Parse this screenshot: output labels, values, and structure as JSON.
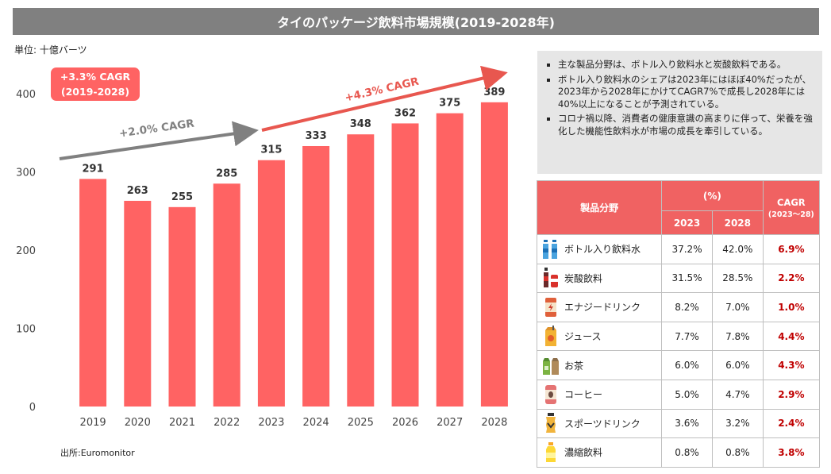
{
  "title": "タイのパッケージ飲料市場規模(2019-2028年)",
  "unit_label": "単位:  十億バーツ",
  "source": "出所:Euromonitor",
  "colors": {
    "bar": "#ff6363",
    "title_bg": "#808080",
    "cagr_gray": "#808080",
    "cagr_red": "#e8574f",
    "table_header": "#f06262",
    "cagr_text": "#c00000"
  },
  "chart_data": {
    "type": "bar",
    "categories": [
      "2019",
      "2020",
      "2021",
      "2022",
      "2023",
      "2024",
      "2025",
      "2026",
      "2027",
      "2028"
    ],
    "values": [
      291,
      263,
      255,
      285,
      315,
      333,
      348,
      362,
      375,
      389
    ],
    "ylim": [
      0,
      400
    ],
    "yticks": [
      0,
      100,
      200,
      300,
      400
    ],
    "grid": false,
    "annotations": {
      "overall_badge_line1": "+3.3% CAGR",
      "overall_badge_line2": "(2019-2028)",
      "cagr_first": "+2.0% CAGR",
      "cagr_second": "+4.3% CAGR"
    }
  },
  "notes": [
    "主な製品分野は、ボトル入り飲料水と炭酸飲料である。",
    "ボトル入り飲料水のシェアは2023年にはほぼ40%だったが、2023年から2028年にかけてCAGR7%で成長し2028年には40%以上になることが予測されている。",
    "コロナ禍以降、消費者の健康意識の高まりに伴って、栄養を強化した機能性飲料水が市場の成長を牽引している。"
  ],
  "table": {
    "header_segment": "製品分野",
    "header_share": "(%)",
    "header_2023": "2023",
    "header_2028": "2028",
    "header_cagr": "CAGR",
    "header_cagr_sub": "(2023～28)",
    "rows": [
      {
        "icon": "bottled-water-icon",
        "name": "ボトル入り飲料水",
        "y2023": "37.2%",
        "y2028": "42.0%",
        "cagr": "6.9%"
      },
      {
        "icon": "soda-icon",
        "name": "炭酸飲料",
        "y2023": "31.5%",
        "y2028": "28.5%",
        "cagr": "2.2%"
      },
      {
        "icon": "energy-drink-icon",
        "name": "エナジードリンク",
        "y2023": "8.2%",
        "y2028": "7.0%",
        "cagr": "1.0%"
      },
      {
        "icon": "juice-icon",
        "name": "ジュース",
        "y2023": "7.7%",
        "y2028": "7.8%",
        "cagr": "4.4%"
      },
      {
        "icon": "tea-icon",
        "name": "お茶",
        "y2023": "6.0%",
        "y2028": "6.0%",
        "cagr": "4.3%"
      },
      {
        "icon": "coffee-icon",
        "name": "コーヒー",
        "y2023": "5.0%",
        "y2028": "4.7%",
        "cagr": "2.9%"
      },
      {
        "icon": "sports-drink-icon",
        "name": "スポーツドリンク",
        "y2023": "3.6%",
        "y2028": "3.2%",
        "cagr": "2.4%"
      },
      {
        "icon": "concentrate-icon",
        "name": "濃縮飲料",
        "y2023": "0.8%",
        "y2028": "0.8%",
        "cagr": "3.8%"
      }
    ]
  }
}
